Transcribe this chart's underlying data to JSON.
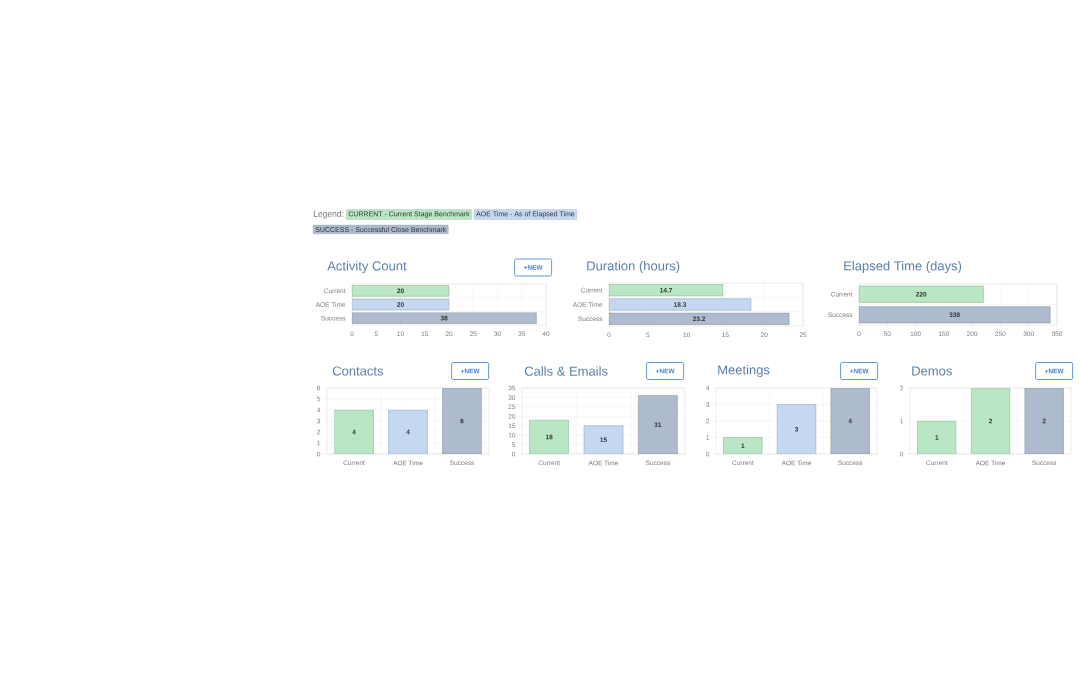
{
  "chart_data": [
    {
      "type": "other",
      "title": "Legend:",
      "annotations": [
        "CURRENT - Current Stage Benchmark",
        "AOE Time - As of Elapsed Time",
        "SUCCESS - Successful Close Benchmark"
      ]
    },
    {
      "type": "bar",
      "orientation": "horizontal",
      "title": "Activity Count",
      "categories": [
        "Current",
        "AOE Time",
        "Success"
      ],
      "values": [
        20,
        20,
        38
      ],
      "colors": [
        "#b9e6c3",
        "#c5d8f2",
        "#aebbcf"
      ],
      "xlim": [
        0,
        40
      ],
      "xticks": [
        0,
        5,
        10,
        15,
        20,
        25,
        30,
        35,
        40
      ],
      "grid": true,
      "data_labels": true,
      "annotations": [
        "+NEW"
      ]
    },
    {
      "type": "bar",
      "orientation": "horizontal",
      "title": "Duration (hours)",
      "categories": [
        "Current",
        "AOE Time",
        "Success"
      ],
      "values": [
        14.7,
        18.3,
        23.2
      ],
      "colors": [
        "#b9e6c3",
        "#c5d8f2",
        "#aebbcf"
      ],
      "xlim": [
        0,
        25
      ],
      "xticks": [
        0,
        5,
        10,
        15,
        20,
        25
      ],
      "grid": true,
      "data_labels": true
    },
    {
      "type": "bar",
      "orientation": "horizontal",
      "title": "Elapsed Time (days)",
      "categories": [
        "Current",
        "Success"
      ],
      "values": [
        220,
        338
      ],
      "colors": [
        "#b9e6c3",
        "#aebbcf"
      ],
      "xlim": [
        0,
        350
      ],
      "xticks": [
        0,
        50,
        100,
        150,
        200,
        250,
        300,
        350
      ],
      "grid": true,
      "data_labels": true
    },
    {
      "type": "bar",
      "title": "Contacts",
      "categories": [
        "Current",
        "AOE Time",
        "Success"
      ],
      "values": [
        4,
        4,
        6
      ],
      "colors": [
        "#b9e6c3",
        "#c5d8f2",
        "#aebbcf"
      ],
      "ylim": [
        0,
        6
      ],
      "yticks": [
        0,
        1,
        2,
        3,
        4,
        5,
        6
      ],
      "grid": true,
      "data_labels": true,
      "annotations": [
        "+NEW"
      ]
    },
    {
      "type": "bar",
      "title": "Calls & Emails",
      "categories": [
        "Current",
        "AOE Time",
        "Success"
      ],
      "values": [
        18,
        15,
        31
      ],
      "colors": [
        "#b9e6c3",
        "#c5d8f2",
        "#aebbcf"
      ],
      "ylim": [
        0,
        35
      ],
      "yticks": [
        0,
        5,
        10,
        15,
        20,
        25,
        30,
        35
      ],
      "grid": true,
      "data_labels": true,
      "annotations": [
        "+NEW"
      ]
    },
    {
      "type": "bar",
      "title": "Meetings",
      "categories": [
        "Current",
        "AOE Time",
        "Success"
      ],
      "values": [
        1,
        3,
        4
      ],
      "colors": [
        "#b9e6c3",
        "#c5d8f2",
        "#aebbcf"
      ],
      "ylim": [
        0,
        4
      ],
      "yticks": [
        0,
        1,
        2,
        3,
        4
      ],
      "grid": true,
      "data_labels": true,
      "annotations": [
        "+NEW"
      ]
    },
    {
      "type": "bar",
      "title": "Demos",
      "categories": [
        "Current",
        "AOE Time",
        "Success"
      ],
      "values": [
        1,
        2,
        2
      ],
      "colors": [
        "#b9e6c3",
        "#b9e6c3",
        "#aebbcf"
      ],
      "ylim": [
        0,
        2
      ],
      "yticks": [
        0,
        1,
        2
      ],
      "grid": true,
      "data_labels": true,
      "annotations": [
        "+NEW"
      ]
    }
  ]
}
